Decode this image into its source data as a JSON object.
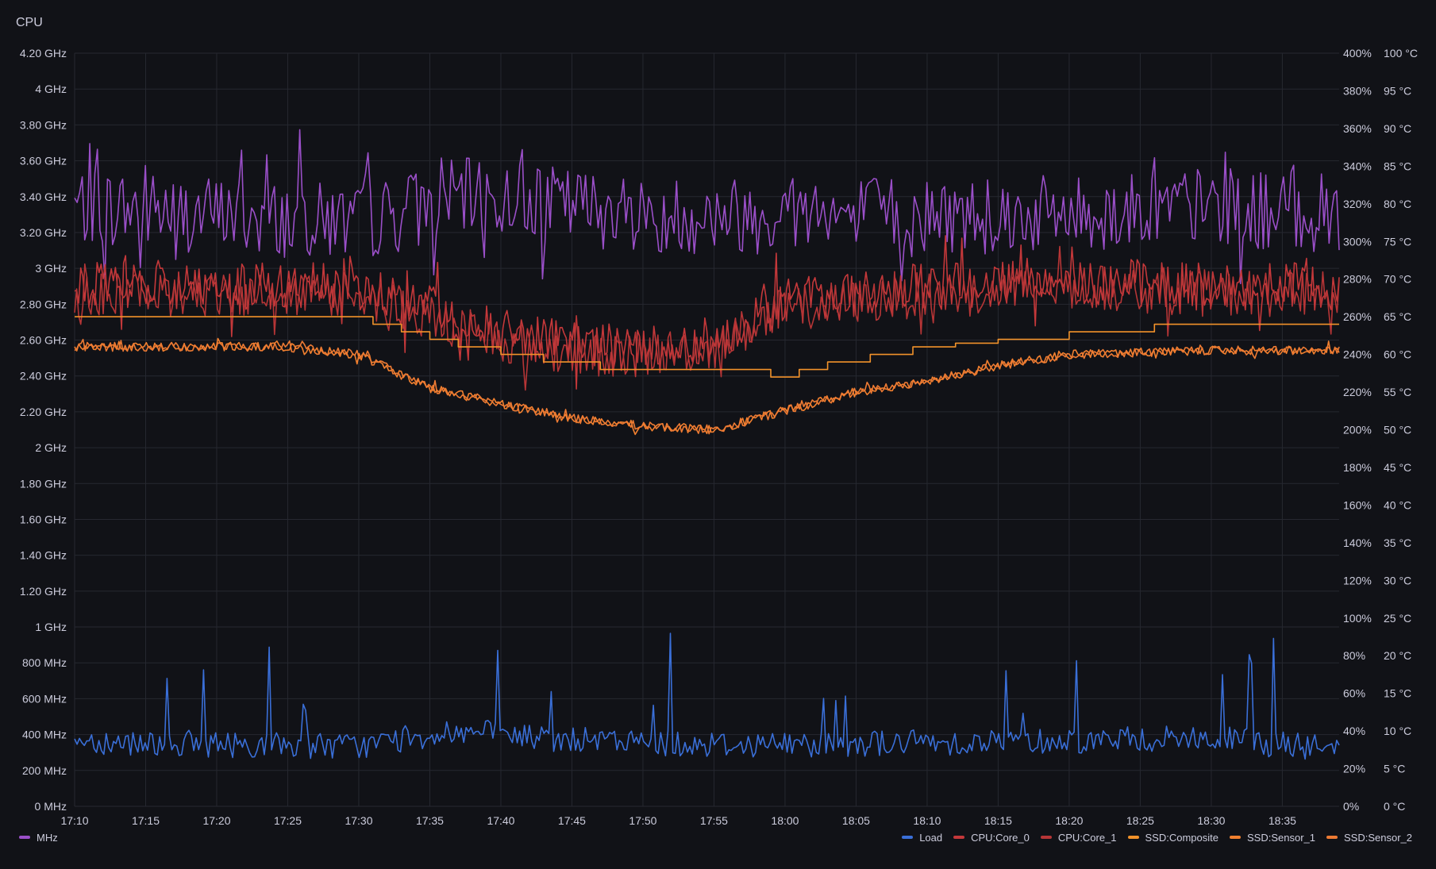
{
  "panel": {
    "title": "CPU"
  },
  "chart_data": {
    "type": "line",
    "title": "CPU",
    "x_ticks": [
      "17:10",
      "17:15",
      "17:20",
      "17:25",
      "17:30",
      "17:35",
      "17:40",
      "17:45",
      "17:50",
      "17:55",
      "18:00",
      "18:05",
      "18:10",
      "18:15",
      "18:20",
      "18:25",
      "18:30",
      "18:35"
    ],
    "x_range": [
      "17:10",
      "18:39"
    ],
    "axes": {
      "left": {
        "unit": "GHz",
        "range": [
          0,
          4.2
        ],
        "ticks": [
          "0 MHz",
          "200 MHz",
          "400 MHz",
          "600 MHz",
          "800 MHz",
          "1 GHz",
          "1.20 GHz",
          "1.40 GHz",
          "1.60 GHz",
          "1.80 GHz",
          "2 GHz",
          "2.20 GHz",
          "2.40 GHz",
          "2.60 GHz",
          "2.80 GHz",
          "3 GHz",
          "3.20 GHz",
          "3.40 GHz",
          "3.60 GHz",
          "3.80 GHz",
          "4 GHz",
          "4.20 GHz"
        ]
      },
      "right_pct": {
        "unit": "%",
        "range": [
          0,
          400
        ],
        "ticks": [
          "0%",
          "20%",
          "40%",
          "60%",
          "80%",
          "100%",
          "120%",
          "140%",
          "160%",
          "180%",
          "200%",
          "220%",
          "240%",
          "260%",
          "280%",
          "300%",
          "320%",
          "340%",
          "360%",
          "380%",
          "400%"
        ]
      },
      "right_temp": {
        "unit": "°C",
        "range": [
          0,
          100
        ],
        "ticks": [
          "0 °C",
          "5 °C",
          "10 °C",
          "15 °C",
          "20 °C",
          "25 °C",
          "30 °C",
          "35 °C",
          "40 °C",
          "45 °C",
          "50 °C",
          "55 °C",
          "60 °C",
          "65 °C",
          "70 °C",
          "75 °C",
          "80 °C",
          "85 °C",
          "90 °C",
          "95 °C",
          "100 °C"
        ]
      }
    },
    "grid": true,
    "legend_position": "bottom",
    "series": [
      {
        "name": "MHz",
        "axis": "left",
        "color": "#9a4fc8",
        "x": [
          "17:10",
          "17:20",
          "17:30",
          "17:37",
          "17:45",
          "17:50",
          "17:55",
          "18:00",
          "18:10",
          "18:20",
          "18:30",
          "18:39"
        ],
        "values": [
          3.35,
          3.3,
          3.25,
          3.4,
          3.35,
          3.3,
          3.3,
          3.3,
          3.3,
          3.3,
          3.35,
          3.3
        ]
      },
      {
        "name": "Load",
        "axis": "right_pct",
        "color": "#3a6fd8",
        "x": [
          "17:10",
          "17:20",
          "17:30",
          "17:37",
          "17:45",
          "17:50",
          "17:55",
          "18:00",
          "18:10",
          "18:20",
          "18:30",
          "18:39"
        ],
        "values": [
          35,
          33,
          32,
          40,
          35,
          34,
          33,
          33,
          34,
          35,
          36,
          30
        ]
      },
      {
        "name": "CPU:Core_0",
        "axis": "right_temp",
        "color": "#c4383a",
        "x": [
          "17:10",
          "17:20",
          "17:30",
          "17:35",
          "17:40",
          "17:45",
          "17:50",
          "17:55",
          "18:00",
          "18:10",
          "18:20",
          "18:30",
          "18:39"
        ],
        "values": [
          69,
          69,
          69,
          66,
          63,
          61,
          61,
          62,
          67,
          69,
          70,
          69,
          69
        ]
      },
      {
        "name": "CPU:Core_1",
        "axis": "right_temp",
        "color": "#b63536",
        "x": [
          "17:10",
          "17:20",
          "17:30",
          "17:35",
          "17:40",
          "17:45",
          "17:50",
          "17:55",
          "18:00",
          "18:10",
          "18:20",
          "18:30",
          "18:39"
        ],
        "values": [
          68,
          68,
          68,
          65,
          62,
          60,
          60,
          61,
          66,
          68,
          69,
          68,
          68
        ]
      },
      {
        "name": "SSD:Composite",
        "axis": "right_temp",
        "color": "#f2922a",
        "x": [
          "17:10",
          "17:30",
          "17:31",
          "17:33",
          "17:35",
          "17:37",
          "17:40",
          "17:43",
          "17:47",
          "17:57",
          "17:59",
          "18:01",
          "18:03",
          "18:06",
          "18:09",
          "18:12",
          "18:15",
          "18:20",
          "18:26",
          "18:39"
        ],
        "values": [
          65,
          65,
          64,
          63,
          62,
          61,
          60,
          59,
          58,
          58,
          57,
          58,
          59,
          60,
          61,
          61.5,
          62,
          63,
          64,
          64
        ]
      },
      {
        "name": "SSD:Sensor_1",
        "axis": "right_temp",
        "color": "#f2802f",
        "x": [
          "17:10",
          "17:25",
          "17:30",
          "17:35",
          "17:40",
          "17:45",
          "17:50",
          "17:55",
          "18:00",
          "18:05",
          "18:10",
          "18:15",
          "18:20",
          "18:30",
          "18:39"
        ],
        "values": [
          61,
          61,
          60,
          55.5,
          53.5,
          51.5,
          50.5,
          50,
          52.5,
          55,
          56.5,
          58.5,
          60,
          60.5,
          60.5
        ]
      },
      {
        "name": "SSD:Sensor_2",
        "axis": "right_temp",
        "color": "#ed7a33",
        "x": [
          "17:10",
          "17:25",
          "17:30",
          "17:35",
          "17:40",
          "17:45",
          "17:50",
          "17:55",
          "18:00",
          "18:05",
          "18:10",
          "18:15",
          "18:20",
          "18:30",
          "18:39"
        ],
        "values": [
          61,
          61,
          60,
          55.5,
          53.5,
          51.5,
          50.5,
          50,
          52.5,
          55,
          56.5,
          58.5,
          60,
          60.5,
          60.5
        ]
      }
    ]
  }
}
